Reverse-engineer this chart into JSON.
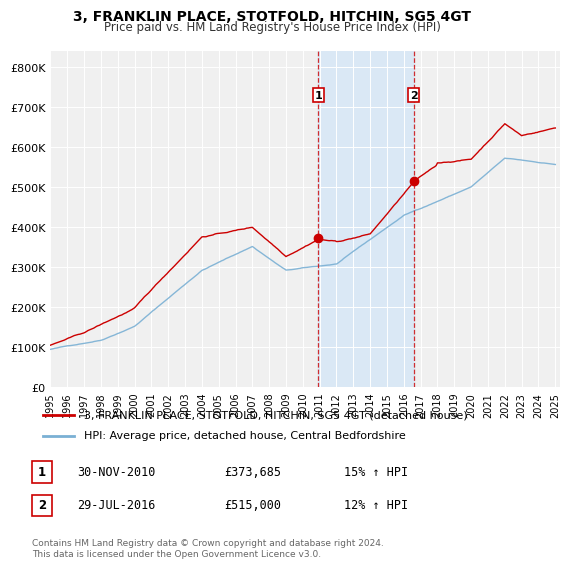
{
  "title": "3, FRANKLIN PLACE, STOTFOLD, HITCHIN, SG5 4GT",
  "subtitle": "Price paid vs. HM Land Registry's House Price Index (HPI)",
  "ylabel_ticks": [
    "£0",
    "£100K",
    "£200K",
    "£300K",
    "£400K",
    "£500K",
    "£600K",
    "£700K",
    "£800K"
  ],
  "ytick_values": [
    0,
    100000,
    200000,
    300000,
    400000,
    500000,
    600000,
    700000,
    800000
  ],
  "ylim": [
    0,
    840000
  ],
  "xlim_start": 1995.0,
  "xlim_end": 2025.3,
  "purchase1_date": 2010.92,
  "purchase1_price": 373685,
  "purchase1_label": "1",
  "purchase2_date": 2016.58,
  "purchase2_price": 515000,
  "purchase2_label": "2",
  "line_color_red": "#cc0000",
  "line_color_blue": "#7ab0d4",
  "shaded_start": 2010.92,
  "shaded_end": 2016.58,
  "legend_label1": "3, FRANKLIN PLACE, STOTFOLD, HITCHIN, SG5 4GT (detached house)",
  "legend_label2": "HPI: Average price, detached house, Central Bedfordshire",
  "annotation1_date": "30-NOV-2010",
  "annotation1_price": "£373,685",
  "annotation1_hpi": "15% ↑ HPI",
  "annotation2_date": "29-JUL-2016",
  "annotation2_price": "£515,000",
  "annotation2_hpi": "12% ↑ HPI",
  "footer": "Contains HM Land Registry data © Crown copyright and database right 2024.\nThis data is licensed under the Open Government Licence v3.0.",
  "background_color": "#ffffff",
  "plot_bg_color": "#f0f0f0",
  "shaded_color": "#dae8f5"
}
